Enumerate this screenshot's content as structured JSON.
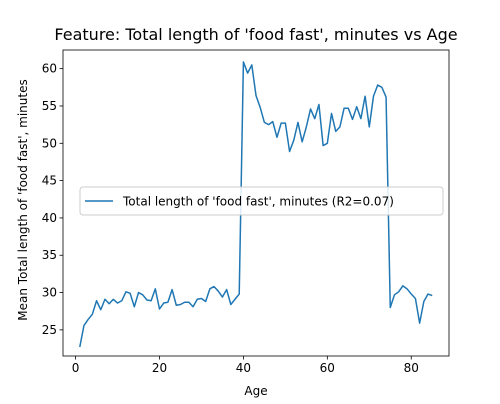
{
  "chart_data": {
    "type": "line",
    "title": "Feature: Total length of 'food fast', minutes vs Age",
    "xlabel": "Age",
    "ylabel": "Mean Total length of 'food fast', minutes",
    "xlim": [
      -3,
      89
    ],
    "ylim": [
      21.5,
      62.5
    ],
    "xticks": [
      0,
      20,
      40,
      60,
      80
    ],
    "yticks": [
      25,
      30,
      35,
      40,
      45,
      50,
      55,
      60
    ],
    "grid": false,
    "legend_position": "center-left",
    "series": [
      {
        "name": "Total length of 'food fast', minutes (R2=0.07)",
        "color": "#1f77b4",
        "x": [
          1,
          2,
          3,
          4,
          5,
          6,
          7,
          8,
          9,
          10,
          11,
          12,
          13,
          14,
          15,
          16,
          17,
          18,
          19,
          20,
          21,
          22,
          23,
          24,
          25,
          26,
          27,
          28,
          29,
          30,
          31,
          32,
          33,
          34,
          35,
          36,
          37,
          38,
          39,
          40,
          41,
          42,
          43,
          44,
          45,
          46,
          47,
          48,
          49,
          50,
          51,
          52,
          53,
          54,
          55,
          56,
          57,
          58,
          59,
          60,
          61,
          62,
          63,
          64,
          65,
          66,
          67,
          68,
          69,
          70,
          71,
          72,
          73,
          74,
          75,
          76,
          77,
          78,
          79,
          80,
          81,
          82,
          83,
          84,
          85
        ],
        "y": [
          22.7,
          25.6,
          26.4,
          27.1,
          28.9,
          27.7,
          29.1,
          28.5,
          29.1,
          28.6,
          28.9,
          30.1,
          29.9,
          28.1,
          30.0,
          29.7,
          29.0,
          28.9,
          30.5,
          27.8,
          28.6,
          28.7,
          30.4,
          28.3,
          28.4,
          28.7,
          28.7,
          28.1,
          29.1,
          29.2,
          28.8,
          30.5,
          30.8,
          30.2,
          29.4,
          30.4,
          28.4,
          29.1,
          29.8,
          60.9,
          59.4,
          60.5,
          56.4,
          54.8,
          52.8,
          52.5,
          52.9,
          50.8,
          52.7,
          52.7,
          48.9,
          50.4,
          52.8,
          50.2,
          52.2,
          54.6,
          53.3,
          55.2,
          49.7,
          50.0,
          54.0,
          51.6,
          52.2,
          54.7,
          54.7,
          53.2,
          54.9,
          53.3,
          56.3,
          52.2,
          56.3,
          57.8,
          57.5,
          56.2,
          28.0,
          29.7,
          30.1,
          30.9,
          30.5,
          29.8,
          29.2,
          25.9,
          28.8,
          29.8,
          29.6
        ]
      }
    ]
  }
}
